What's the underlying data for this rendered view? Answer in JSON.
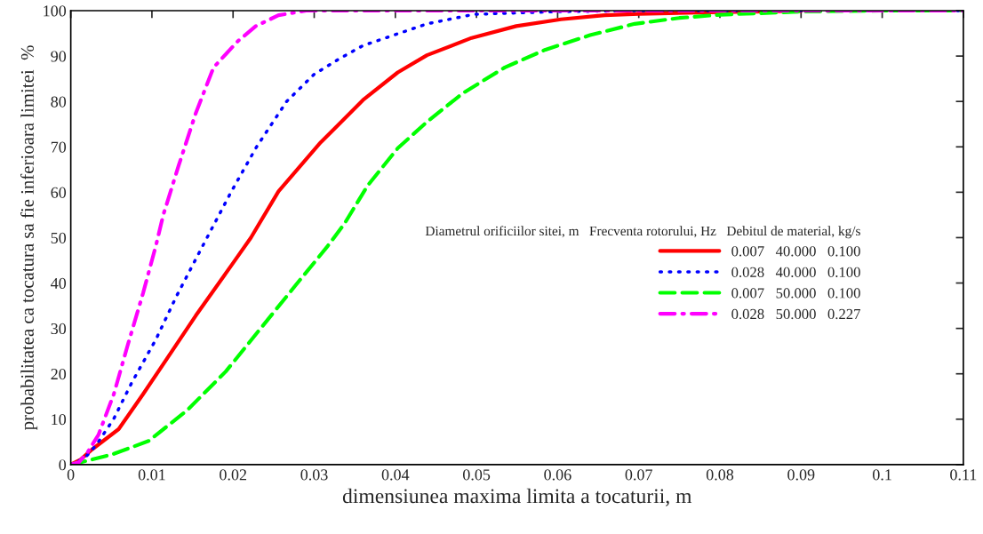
{
  "chart_data": {
    "type": "line",
    "xlabel": "dimensiunea maxima limita a tocaturii, m",
    "ylabel": "probabilitatea ca tocatura sa fie inferioara limitei  %",
    "legend_title": "Diametrul orificiilor sitei, m   Frecventa rotorului, Hz   Debitul de material, kg/s",
    "legend": "right",
    "grid": false,
    "xlim": [
      0,
      0.11
    ],
    "ylim": [
      0,
      100
    ],
    "xticks": [
      {
        "value": 0,
        "label": "0"
      },
      0.01,
      0.02,
      0.03,
      0.04,
      0.05,
      0.06,
      0.07,
      0.08,
      0.09,
      0.1,
      0.11
    ],
    "yticks": [
      0,
      10,
      20,
      30,
      40,
      50,
      60,
      70,
      80,
      90,
      100
    ],
    "series": [
      {
        "name": "0.007   40.000   0.100",
        "color": "#ff0000",
        "line_style": "solid",
        "x": [
          0,
          0.0012,
          0.0026,
          0.0059,
          0.0089,
          0.0118,
          0.0154,
          0.0198,
          0.0222,
          0.0256,
          0.0308,
          0.033,
          0.036,
          0.0403,
          0.0439,
          0.0494,
          0.0549,
          0.0604,
          0.0658,
          0.07,
          0.08,
          0.09
        ],
        "values": [
          0,
          1.1,
          3.3,
          7.8,
          15.5,
          23.2,
          32.8,
          43.9,
          50,
          60.2,
          71,
          74.9,
          80.3,
          86.4,
          90.2,
          94,
          96.6,
          98.1,
          99,
          99.3,
          99.7,
          99.9
        ]
      },
      {
        "name": "0.028   40.000   0.100",
        "color": "#0000ff",
        "line_style": "dotted",
        "x": [
          0,
          0.001,
          0.002,
          0.0031,
          0.0053,
          0.0075,
          0.0105,
          0.013,
          0.016,
          0.0198,
          0.0229,
          0.0266,
          0.03,
          0.033,
          0.036,
          0.0439,
          0.0497,
          0.06,
          0.07,
          0.08,
          0.11
        ],
        "values": [
          0,
          0.8,
          2,
          4.2,
          10.1,
          18,
          27.6,
          37,
          47.3,
          60.2,
          70,
          80,
          86,
          89.3,
          92.3,
          97.1,
          99.2,
          99.8,
          100,
          100,
          100
        ]
      },
      {
        "name": "0.007   50.000   0.100",
        "color": "#00ff00",
        "line_style": "dashed",
        "x": [
          0,
          0.0026,
          0.0052,
          0.0096,
          0.0143,
          0.0191,
          0.0234,
          0.0278,
          0.0316,
          0.0337,
          0.0366,
          0.0403,
          0.0439,
          0.0483,
          0.0535,
          0.0585,
          0.064,
          0.0695,
          0.075,
          0.08,
          0.09,
          0.1,
          0.11
        ],
        "values": [
          0,
          1.1,
          2.3,
          5.2,
          11.9,
          20.5,
          30,
          39.7,
          48,
          53,
          61.5,
          69.7,
          75.5,
          81.8,
          87.5,
          91.4,
          94.6,
          97.1,
          98.4,
          99.1,
          99.8,
          100,
          100
        ]
      },
      {
        "name": "0.028   50.000   0.227",
        "color": "#ff00ff",
        "line_style": "dashdot",
        "x": [
          0,
          0.001,
          0.002,
          0.0034,
          0.0053,
          0.007,
          0.0089,
          0.0105,
          0.0114,
          0.0133,
          0.0154,
          0.0176,
          0.0206,
          0.0228,
          0.0256,
          0.029,
          0.04,
          0.11
        ],
        "values": [
          0,
          0.5,
          2.5,
          6.5,
          15.5,
          26.2,
          37.7,
          48.3,
          55,
          65.9,
          77.4,
          87.5,
          93.3,
          96.6,
          99,
          100,
          100,
          100
        ]
      }
    ]
  }
}
